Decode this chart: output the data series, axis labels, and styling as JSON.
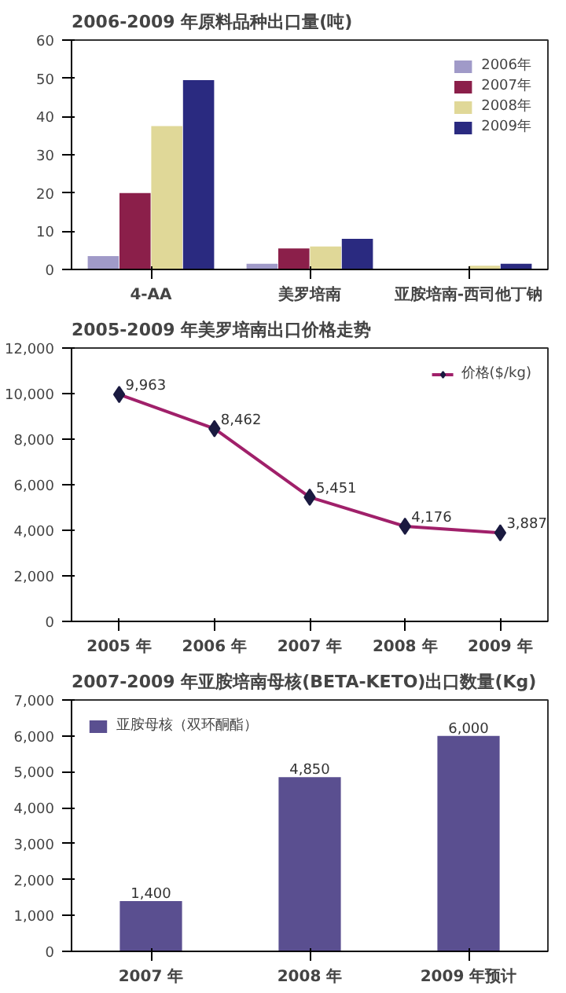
{
  "chart_data": [
    {
      "type": "bar",
      "title": "2006-2009 年原料品种出口量(吨)",
      "categories": [
        "4-AA",
        "美罗培南",
        "亚胺培南-西司他丁钠"
      ],
      "ylim": [
        0,
        60
      ],
      "yticks": [
        0,
        10,
        20,
        30,
        40,
        50,
        60
      ],
      "grid": false,
      "legend": "top right",
      "series": [
        {
          "name": "2006年",
          "color": "#a09ac8",
          "values": [
            3.5,
            1.5,
            null
          ]
        },
        {
          "name": "2007年",
          "color": "#8b1f4a",
          "values": [
            20,
            5.5,
            null
          ]
        },
        {
          "name": "2008年",
          "color": "#e0d898",
          "values": [
            37.5,
            6,
            1
          ]
        },
        {
          "name": "2009年",
          "color": "#2a2a80",
          "values": [
            49.5,
            8,
            1.5
          ]
        }
      ]
    },
    {
      "type": "line",
      "title": "2005-2009 年美罗培南出口价格走势",
      "categories": [
        "2005 年",
        "2006 年",
        "2007 年",
        "2008 年",
        "2009 年"
      ],
      "ylim": [
        0,
        12000
      ],
      "yticks": [
        0,
        {
          "value": 2000,
          "label": "2,000"
        },
        {
          "value": 4000,
          "label": "4,000"
        },
        {
          "value": 6000,
          "label": "6,000"
        },
        {
          "value": 8000,
          "label": "8,000"
        },
        {
          "value": 10000,
          "label": "10,000"
        },
        {
          "value": 12000,
          "label": "12,000"
        }
      ],
      "grid": false,
      "legend": "top right",
      "marker": "diamond",
      "line_style": "solid",
      "series": [
        {
          "name": "价格($/kg)",
          "color": "#a0206a",
          "values": [
            9963,
            8462,
            5451,
            4176,
            3887
          ],
          "value_labels": [
            "9,963",
            "8,462",
            "5,451",
            "4,176",
            "3,887"
          ]
        }
      ]
    },
    {
      "type": "bar",
      "title": "2007-2009 年亚胺培南母核(BETA-KETO)出口数量(Kg)",
      "categories": [
        "2007 年",
        "2008 年",
        "2009 年预计"
      ],
      "ylim": [
        0,
        7000
      ],
      "yticks": [
        0,
        {
          "value": 1000,
          "label": "1,000"
        },
        {
          "value": 2000,
          "label": "2,000"
        },
        {
          "value": 3000,
          "label": "3,000"
        },
        {
          "value": 4000,
          "label": "4,000"
        },
        {
          "value": 5000,
          "label": "5,000"
        },
        {
          "value": 6000,
          "label": "6,000"
        },
        {
          "value": 7000,
          "label": "7,000"
        }
      ],
      "grid": false,
      "legend": "top left",
      "series": [
        {
          "name": "亚胺母核（双环酮酯）",
          "color": "#5a4f90",
          "values": [
            1400,
            4850,
            6000
          ],
          "value_labels": [
            "1,400",
            "4,850",
            "6,000"
          ]
        }
      ]
    }
  ]
}
